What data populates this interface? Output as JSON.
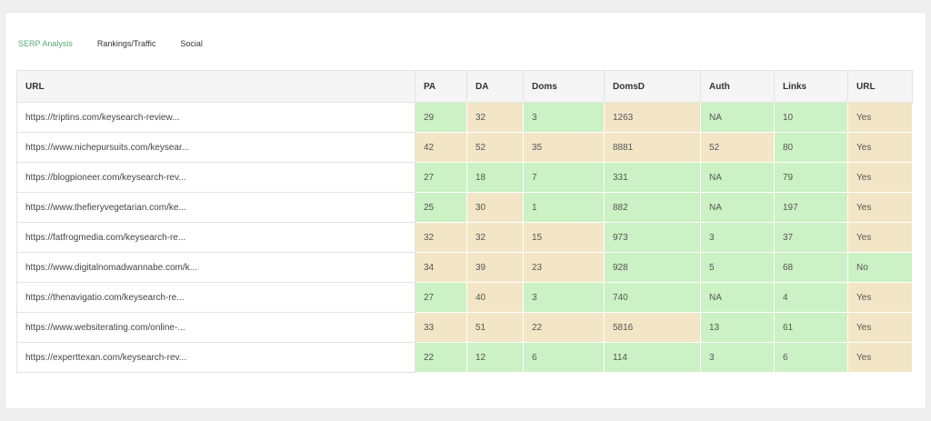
{
  "tabs": [
    {
      "label": "SERP Analysis",
      "active": true
    },
    {
      "label": "Rankings/Traffic",
      "active": false
    },
    {
      "label": "Social",
      "active": false
    }
  ],
  "colors": {
    "good": "#ccf1c4",
    "warn": "#f2e6c6",
    "active_tab": "#5aa874"
  },
  "table": {
    "headers": [
      "URL",
      "PA",
      "DA",
      "Doms",
      "DomsD",
      "Auth",
      "Links",
      "URL"
    ],
    "rows": [
      {
        "url": "https://triptins.com/keysearch-review...",
        "cells": [
          {
            "v": "29",
            "s": "good"
          },
          {
            "v": "32",
            "s": "warn"
          },
          {
            "v": "3",
            "s": "good"
          },
          {
            "v": "1263",
            "s": "warn"
          },
          {
            "v": "NA",
            "s": "good"
          },
          {
            "v": "10",
            "s": "good"
          },
          {
            "v": "Yes",
            "s": "warn"
          }
        ]
      },
      {
        "url": "https://www.nichepursuits.com/keysear...",
        "cells": [
          {
            "v": "42",
            "s": "warn"
          },
          {
            "v": "52",
            "s": "warn"
          },
          {
            "v": "35",
            "s": "warn"
          },
          {
            "v": "8881",
            "s": "warn"
          },
          {
            "v": "52",
            "s": "warn"
          },
          {
            "v": "80",
            "s": "good"
          },
          {
            "v": "Yes",
            "s": "warn"
          }
        ]
      },
      {
        "url": "https://blogpioneer.com/keysearch-rev...",
        "cells": [
          {
            "v": "27",
            "s": "good"
          },
          {
            "v": "18",
            "s": "good"
          },
          {
            "v": "7",
            "s": "good"
          },
          {
            "v": "331",
            "s": "good"
          },
          {
            "v": "NA",
            "s": "good"
          },
          {
            "v": "79",
            "s": "good"
          },
          {
            "v": "Yes",
            "s": "warn"
          }
        ]
      },
      {
        "url": "https://www.thefieryvegetarian.com/ke...",
        "cells": [
          {
            "v": "25",
            "s": "good"
          },
          {
            "v": "30",
            "s": "warn"
          },
          {
            "v": "1",
            "s": "good"
          },
          {
            "v": "882",
            "s": "good"
          },
          {
            "v": "NA",
            "s": "good"
          },
          {
            "v": "197",
            "s": "good"
          },
          {
            "v": "Yes",
            "s": "warn"
          }
        ]
      },
      {
        "url": "https://fatfrogmedia.com/keysearch-re...",
        "cells": [
          {
            "v": "32",
            "s": "warn"
          },
          {
            "v": "32",
            "s": "warn"
          },
          {
            "v": "15",
            "s": "warn"
          },
          {
            "v": "973",
            "s": "good"
          },
          {
            "v": "3",
            "s": "good"
          },
          {
            "v": "37",
            "s": "good"
          },
          {
            "v": "Yes",
            "s": "warn"
          }
        ]
      },
      {
        "url": "https://www.digitalnomadwannabe.com/k...",
        "cells": [
          {
            "v": "34",
            "s": "warn"
          },
          {
            "v": "39",
            "s": "warn"
          },
          {
            "v": "23",
            "s": "warn"
          },
          {
            "v": "928",
            "s": "good"
          },
          {
            "v": "5",
            "s": "good"
          },
          {
            "v": "68",
            "s": "good"
          },
          {
            "v": "No",
            "s": "good"
          }
        ]
      },
      {
        "url": "https://thenavigatio.com/keysearch-re...",
        "cells": [
          {
            "v": "27",
            "s": "good"
          },
          {
            "v": "40",
            "s": "warn"
          },
          {
            "v": "3",
            "s": "good"
          },
          {
            "v": "740",
            "s": "good"
          },
          {
            "v": "NA",
            "s": "good"
          },
          {
            "v": "4",
            "s": "good"
          },
          {
            "v": "Yes",
            "s": "warn"
          }
        ]
      },
      {
        "url": "https://www.websiterating.com/online-...",
        "cells": [
          {
            "v": "33",
            "s": "warn"
          },
          {
            "v": "51",
            "s": "warn"
          },
          {
            "v": "22",
            "s": "warn"
          },
          {
            "v": "5816",
            "s": "warn"
          },
          {
            "v": "13",
            "s": "good"
          },
          {
            "v": "61",
            "s": "good"
          },
          {
            "v": "Yes",
            "s": "warn"
          }
        ]
      },
      {
        "url": "https://experttexan.com/keysearch-rev...",
        "cells": [
          {
            "v": "22",
            "s": "good"
          },
          {
            "v": "12",
            "s": "good"
          },
          {
            "v": "6",
            "s": "good"
          },
          {
            "v": "114",
            "s": "good"
          },
          {
            "v": "3",
            "s": "good"
          },
          {
            "v": "6",
            "s": "good"
          },
          {
            "v": "Yes",
            "s": "warn"
          }
        ]
      }
    ]
  }
}
